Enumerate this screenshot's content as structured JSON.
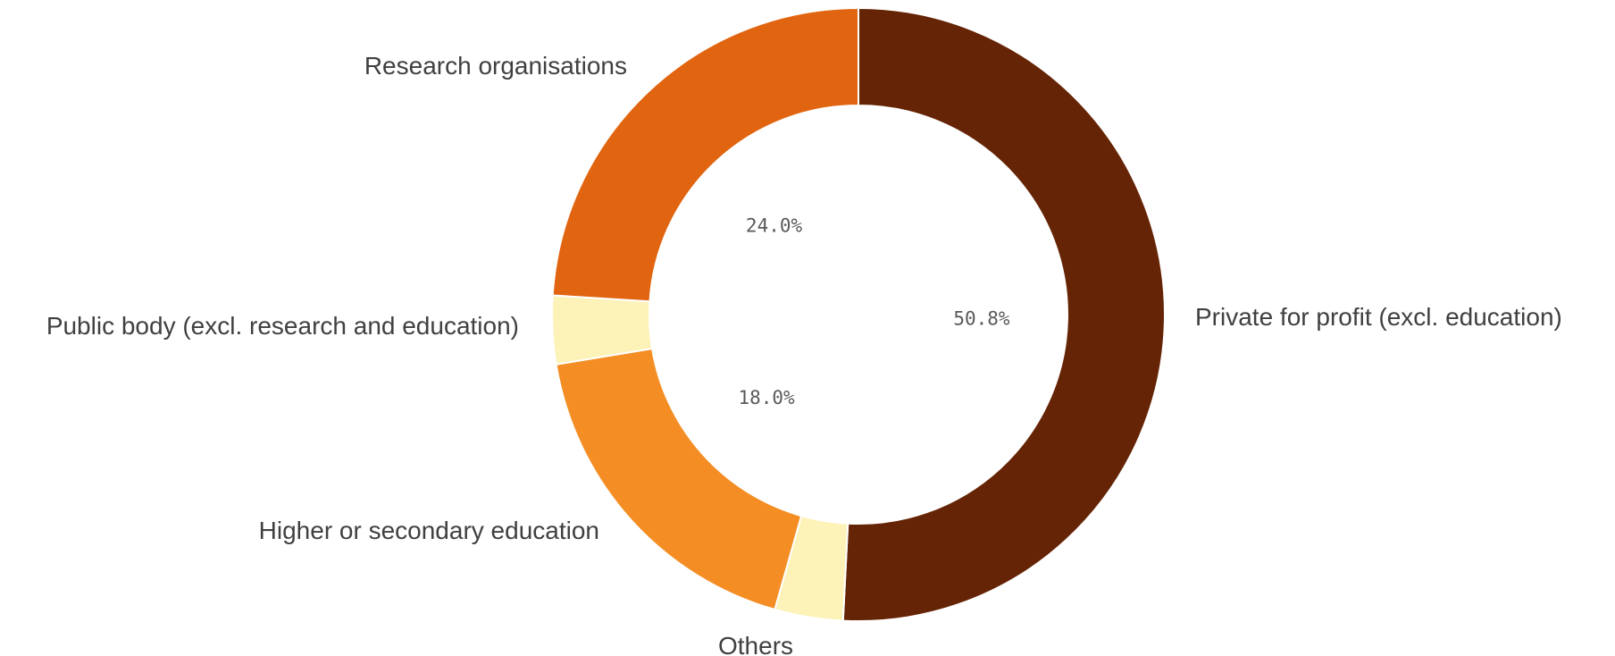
{
  "chart_data": {
    "type": "pie",
    "variant": "donut",
    "title": "",
    "legend": "none",
    "slices": [
      {
        "label": "Private for profit (excl. education)",
        "value": 50.8,
        "value_label": "50.8%",
        "color": "#652405"
      },
      {
        "label": "Others",
        "value": 3.6,
        "value_label": "",
        "color": "#fdf2b8"
      },
      {
        "label": "Higher or secondary education",
        "value": 18.0,
        "value_label": "18.0%",
        "color": "#f48e24"
      },
      {
        "label": "Public body (excl. research and education)",
        "value": 3.6,
        "value_label": "",
        "color": "#fdf2b8"
      },
      {
        "label": "Research organisations",
        "value": 24.0,
        "value_label": "24.0%",
        "color": "#e16510"
      }
    ]
  }
}
